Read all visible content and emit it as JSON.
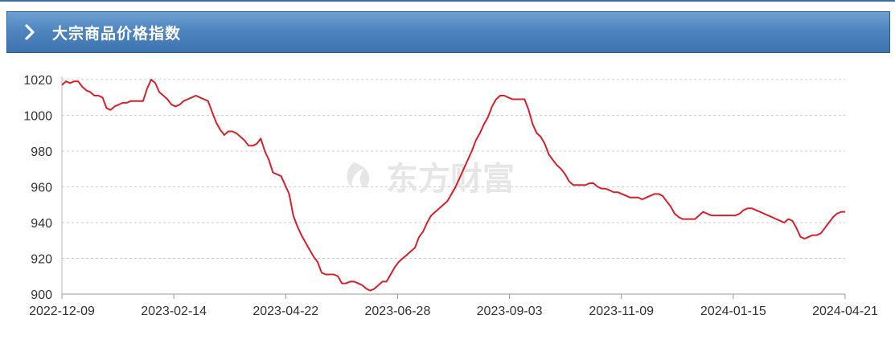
{
  "header": {
    "title": "大宗商品价格指数"
  },
  "watermark": "东方财富",
  "colors": {
    "line": "#d9202a",
    "header_bg": "#4f86c0",
    "grid": "#cccccc"
  },
  "chart_data": {
    "type": "line",
    "ylim": [
      900,
      1020
    ],
    "yticks": [
      "1020",
      "1000",
      "980",
      "960",
      "940",
      "920",
      "900"
    ],
    "xticks": [
      "2022-12-09",
      "2023-02-14",
      "2023-04-22",
      "2023-06-28",
      "2023-09-03",
      "2023-11-09",
      "2024-01-15",
      "2024-04-21"
    ],
    "grid": true,
    "series": [
      {
        "values": [
          1017,
          1019,
          1018,
          1019,
          1019,
          1016,
          1014,
          1013,
          1011,
          1011,
          1010,
          1004,
          1003,
          1005,
          1006,
          1007,
          1007,
          1008,
          1008,
          1008,
          1008,
          1015,
          1020,
          1018,
          1013,
          1011,
          1009,
          1006,
          1005,
          1006,
          1008,
          1009,
          1010,
          1011,
          1010,
          1009,
          1008,
          1002,
          996,
          992,
          989,
          991,
          991,
          990,
          988,
          986,
          983,
          983,
          984,
          987,
          980,
          975,
          968,
          967,
          966,
          961,
          956,
          944,
          938,
          933,
          929,
          925,
          921,
          918,
          912,
          911,
          911,
          911,
          910,
          906,
          906,
          907,
          907,
          906,
          905,
          903,
          902,
          903,
          905,
          907,
          907,
          911,
          915,
          918,
          920,
          922,
          924,
          926,
          932,
          935,
          940,
          944,
          946,
          948,
          950,
          952,
          956,
          960,
          965,
          970,
          975,
          980,
          986,
          990,
          995,
          999,
          1005,
          1009,
          1011,
          1011,
          1010,
          1009,
          1009,
          1009,
          1009,
          1003,
          995,
          990,
          988,
          984,
          978,
          975,
          972,
          970,
          967,
          963,
          961,
          961,
          961,
          961,
          962,
          962,
          960,
          959,
          959,
          958,
          957,
          957,
          956,
          955,
          954,
          954,
          954,
          953,
          954,
          955,
          956,
          956,
          955,
          952,
          949,
          945,
          943,
          942,
          942,
          942,
          942,
          944,
          946,
          945,
          944,
          944,
          944,
          944,
          944,
          944,
          944,
          945,
          947,
          948,
          948,
          947,
          946,
          945,
          944,
          943,
          942,
          941,
          940,
          942,
          941,
          937,
          932,
          931,
          932,
          933,
          933,
          934,
          937,
          940,
          943,
          945,
          946,
          946
        ]
      }
    ]
  }
}
